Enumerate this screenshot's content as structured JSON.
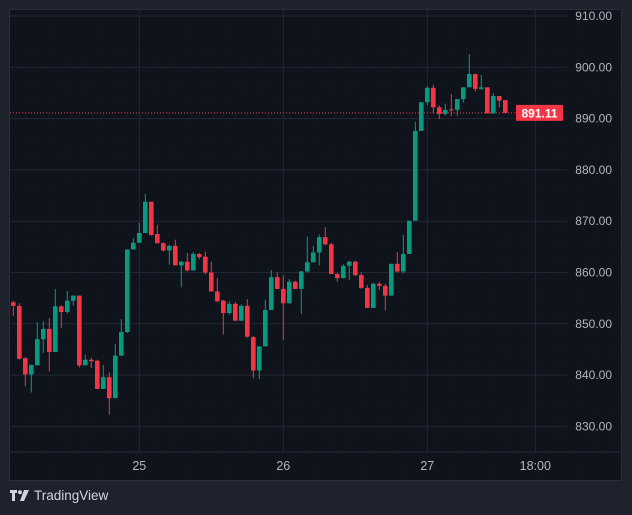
{
  "brand": {
    "name": "TradingView"
  },
  "colors": {
    "up": "#089981",
    "down": "#f23645",
    "grid": "#232733",
    "text": "#b2b5be",
    "last_price_bg": "#f23645"
  },
  "chart_data": {
    "type": "candlestick",
    "ylim": [
      826,
      912
    ],
    "y_ticks": [
      910,
      900,
      890,
      880,
      870,
      860,
      850,
      840,
      830
    ],
    "y_tick_labels": [
      "910.00",
      "900.00",
      "890.00",
      "880.00",
      "870.00",
      "860.00",
      "850.00",
      "840.00",
      "830.00"
    ],
    "x_ticks": [
      {
        "label": "25",
        "index": 21
      },
      {
        "label": "26",
        "index": 45
      },
      {
        "label": "27",
        "index": 69
      },
      {
        "label": "18:00",
        "index": 87
      }
    ],
    "last_price": 891.11,
    "last_price_label": "891.11",
    "ohlc_fields": [
      "open",
      "high",
      "low",
      "close"
    ],
    "ohlc": [
      [
        854.2,
        854.5,
        851.5,
        853.5
      ],
      [
        853.5,
        854.0,
        843.0,
        843.2
      ],
      [
        843.3,
        843.5,
        837.8,
        840.1
      ],
      [
        840.1,
        842.0,
        836.6,
        842.0
      ],
      [
        841.9,
        850.3,
        841.9,
        847.0
      ],
      [
        847.0,
        850.5,
        844.3,
        849.0
      ],
      [
        849.0,
        851.1,
        840.7,
        844.5
      ],
      [
        844.5,
        856.8,
        844.5,
        853.4
      ],
      [
        853.4,
        853.6,
        849.2,
        852.3
      ],
      [
        852.3,
        856.4,
        852.0,
        854.5
      ],
      [
        854.5,
        855.5,
        853.5,
        855.5
      ],
      [
        855.5,
        855.5,
        841.5,
        841.9
      ],
      [
        841.9,
        844.0,
        841.9,
        843.0
      ],
      [
        843.0,
        843.4,
        841.4,
        842.7
      ],
      [
        842.8,
        843.0,
        837.3,
        837.3
      ],
      [
        837.3,
        842.0,
        837.3,
        839.6
      ],
      [
        839.6,
        840.5,
        832.3,
        835.5
      ],
      [
        835.5,
        846.1,
        835.5,
        843.8
      ],
      [
        843.8,
        850.9,
        843.8,
        848.4
      ],
      [
        848.4,
        864.5,
        848.2,
        864.5
      ],
      [
        864.5,
        866.7,
        864.5,
        865.8
      ],
      [
        865.8,
        869.7,
        865.8,
        867.7
      ],
      [
        867.7,
        875.3,
        867.7,
        873.8
      ],
      [
        873.8,
        873.8,
        867.2,
        867.3
      ],
      [
        867.5,
        869.3,
        865.7,
        865.7
      ],
      [
        865.7,
        865.9,
        864.1,
        864.3
      ],
      [
        864.3,
        865.4,
        861.5,
        865.2
      ],
      [
        865.2,
        866.4,
        861.4,
        861.4
      ],
      [
        861.4,
        862.3,
        857.1,
        862.1
      ],
      [
        862.1,
        863.8,
        860.2,
        860.4
      ],
      [
        860.4,
        864.0,
        860.4,
        863.6
      ],
      [
        863.6,
        863.8,
        862.6,
        863.0
      ],
      [
        863.1,
        864.1,
        859.6,
        860.0
      ],
      [
        860.0,
        862.1,
        856.3,
        856.3
      ],
      [
        856.3,
        858.9,
        854.2,
        854.4
      ],
      [
        854.5,
        854.7,
        847.9,
        852.1
      ],
      [
        852.1,
        854.4,
        851.8,
        853.9
      ],
      [
        853.9,
        854.2,
        850.6,
        850.6
      ],
      [
        850.6,
        853.8,
        850.6,
        853.5
      ],
      [
        853.5,
        854.8,
        847.3,
        847.5
      ],
      [
        847.4,
        847.6,
        839.4,
        840.9
      ],
      [
        840.9,
        845.6,
        839.2,
        845.6
      ],
      [
        845.6,
        854.7,
        845.6,
        852.7
      ],
      [
        852.7,
        860.5,
        852.7,
        859.1
      ],
      [
        859.1,
        860.0,
        856.8,
        856.8
      ],
      [
        856.8,
        859.4,
        846.9,
        854.0
      ],
      [
        854.0,
        858.7,
        853.9,
        858.2
      ],
      [
        858.2,
        858.4,
        856.8,
        856.8
      ],
      [
        856.8,
        860.3,
        851.9,
        860.2
      ],
      [
        860.2,
        867.0,
        860.0,
        862.0
      ],
      [
        862.0,
        865.2,
        862.0,
        863.9
      ],
      [
        863.9,
        867.4,
        861.4,
        866.9
      ],
      [
        866.9,
        868.8,
        865.3,
        865.5
      ],
      [
        865.5,
        865.8,
        859.7,
        859.7
      ],
      [
        859.7,
        859.9,
        858.2,
        858.9
      ],
      [
        858.9,
        861.6,
        858.9,
        861.3
      ],
      [
        861.3,
        862.3,
        858.6,
        862.1
      ],
      [
        862.1,
        862.3,
        859.3,
        859.5
      ],
      [
        859.5,
        860.0,
        856.8,
        857.0
      ],
      [
        857.0,
        857.6,
        853.1,
        853.1
      ],
      [
        853.1,
        858.0,
        853.1,
        857.8
      ],
      [
        857.8,
        858.1,
        856.6,
        857.4
      ],
      [
        857.4,
        857.8,
        852.6,
        855.5
      ],
      [
        855.5,
        861.7,
        855.5,
        861.7
      ],
      [
        861.7,
        864.0,
        860.0,
        860.2
      ],
      [
        860.2,
        867.3,
        859.8,
        863.6
      ],
      [
        863.6,
        870.1,
        863.6,
        870.1
      ],
      [
        870.1,
        889.4,
        870.1,
        887.6
      ],
      [
        887.6,
        893.2,
        887.6,
        893.2
      ],
      [
        893.2,
        896.3,
        892.6,
        896.0
      ],
      [
        896.0,
        896.6,
        891.0,
        892.2
      ],
      [
        892.2,
        892.6,
        889.9,
        890.9
      ],
      [
        890.9,
        892.9,
        890.6,
        891.7
      ],
      [
        891.8,
        894.8,
        890.5,
        891.7
      ],
      [
        891.7,
        893.8,
        890.5,
        893.8
      ],
      [
        893.8,
        896.1,
        893.1,
        896.1
      ],
      [
        896.1,
        902.6,
        896.1,
        898.7
      ],
      [
        898.7,
        898.7,
        895.3,
        895.8
      ],
      [
        895.8,
        898.5,
        895.6,
        896.1
      ],
      [
        896.1,
        896.1,
        891.0,
        891.0
      ],
      [
        891.0,
        895.0,
        891.0,
        894.4
      ],
      [
        894.4,
        894.4,
        892.2,
        893.5
      ],
      [
        893.6,
        893.6,
        891.1,
        891.11
      ]
    ]
  }
}
